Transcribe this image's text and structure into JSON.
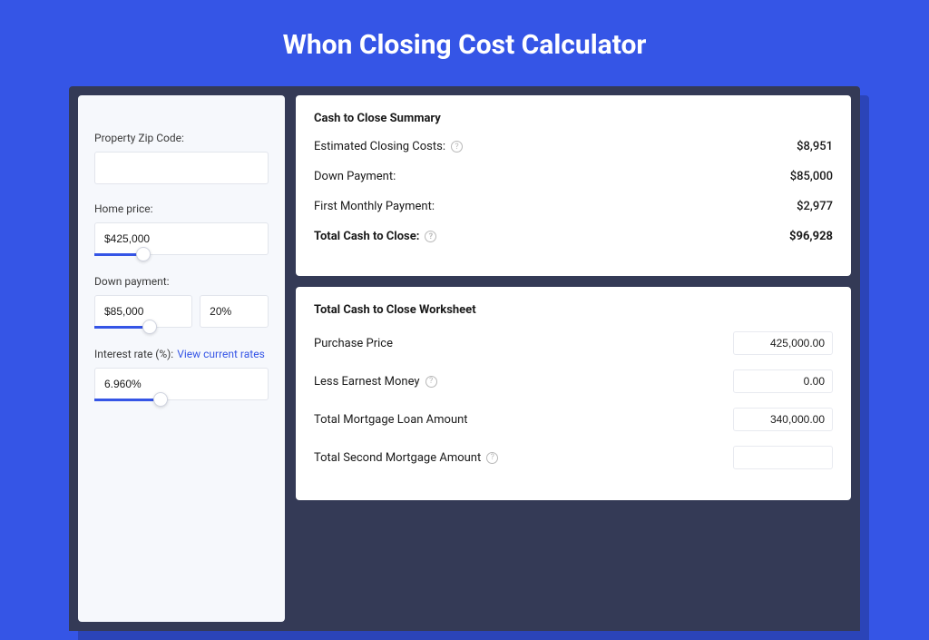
{
  "colors": {
    "page_bg": "#3555E6",
    "shadow_bg": "#2B44B8",
    "card_bg": "#343A56",
    "left_bg": "#F6F8FC",
    "panel_bg": "#ffffff",
    "accent": "#3555E6",
    "text": "#1a1a1a",
    "muted": "#b8b8b8",
    "border": "#e2e5ec"
  },
  "title": "Whon Closing Cost Calculator",
  "left": {
    "zip": {
      "label": "Property Zip Code:",
      "value": ""
    },
    "home_price": {
      "label": "Home price:",
      "value": "$425,000",
      "slider_fill_pct": 28,
      "slider_thumb_pct": 28
    },
    "down_payment": {
      "label": "Down payment:",
      "amount": "$85,000",
      "percent": "20%",
      "slider_fill_pct": 32,
      "slider_thumb_pct": 32
    },
    "interest": {
      "label": "Interest rate (%):",
      "link": "View current rates",
      "value": "6.960%",
      "slider_fill_pct": 38,
      "slider_thumb_pct": 38
    }
  },
  "summary": {
    "title": "Cash to Close Summary",
    "rows": [
      {
        "label": "Estimated Closing Costs:",
        "help": true,
        "value": "$8,951",
        "bold": false
      },
      {
        "label": "Down Payment:",
        "help": false,
        "value": "$85,000",
        "bold": false
      },
      {
        "label": "First Monthly Payment:",
        "help": false,
        "value": "$2,977",
        "bold": false
      },
      {
        "label": "Total Cash to Close:",
        "help": true,
        "value": "$96,928",
        "bold": true
      }
    ]
  },
  "worksheet": {
    "title": "Total Cash to Close Worksheet",
    "rows": [
      {
        "label": "Purchase Price",
        "help": false,
        "value": "425,000.00"
      },
      {
        "label": "Less Earnest Money",
        "help": true,
        "value": "0.00"
      },
      {
        "label": "Total Mortgage Loan Amount",
        "help": false,
        "value": "340,000.00"
      },
      {
        "label": "Total Second Mortgage Amount",
        "help": true,
        "value": ""
      }
    ]
  }
}
